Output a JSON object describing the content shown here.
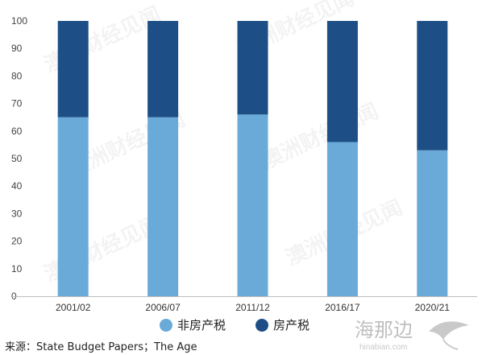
{
  "chart_data": {
    "type": "bar",
    "stacked": true,
    "categories": [
      "2001/02",
      "2006/07",
      "2011/12",
      "2016/17",
      "2020/21"
    ],
    "series": [
      {
        "name": "非房产税",
        "values": [
          65,
          65,
          66,
          56,
          53
        ],
        "color": "#6aaad9"
      },
      {
        "name": "房产税",
        "values": [
          35,
          35,
          34,
          44,
          47
        ],
        "color": "#1d4f86"
      }
    ],
    "ylim": [
      0,
      100
    ],
    "yticks": [
      0,
      10,
      20,
      30,
      40,
      50,
      60,
      70,
      80,
      90,
      100
    ],
    "grid": false,
    "legend_position": "bottom-center"
  },
  "source_text": "来源：State Budget Papers；The Age",
  "watermark_text": "澳洲财经见闻",
  "logo": {
    "text": "海那边",
    "subtext": "hinabian.com"
  }
}
